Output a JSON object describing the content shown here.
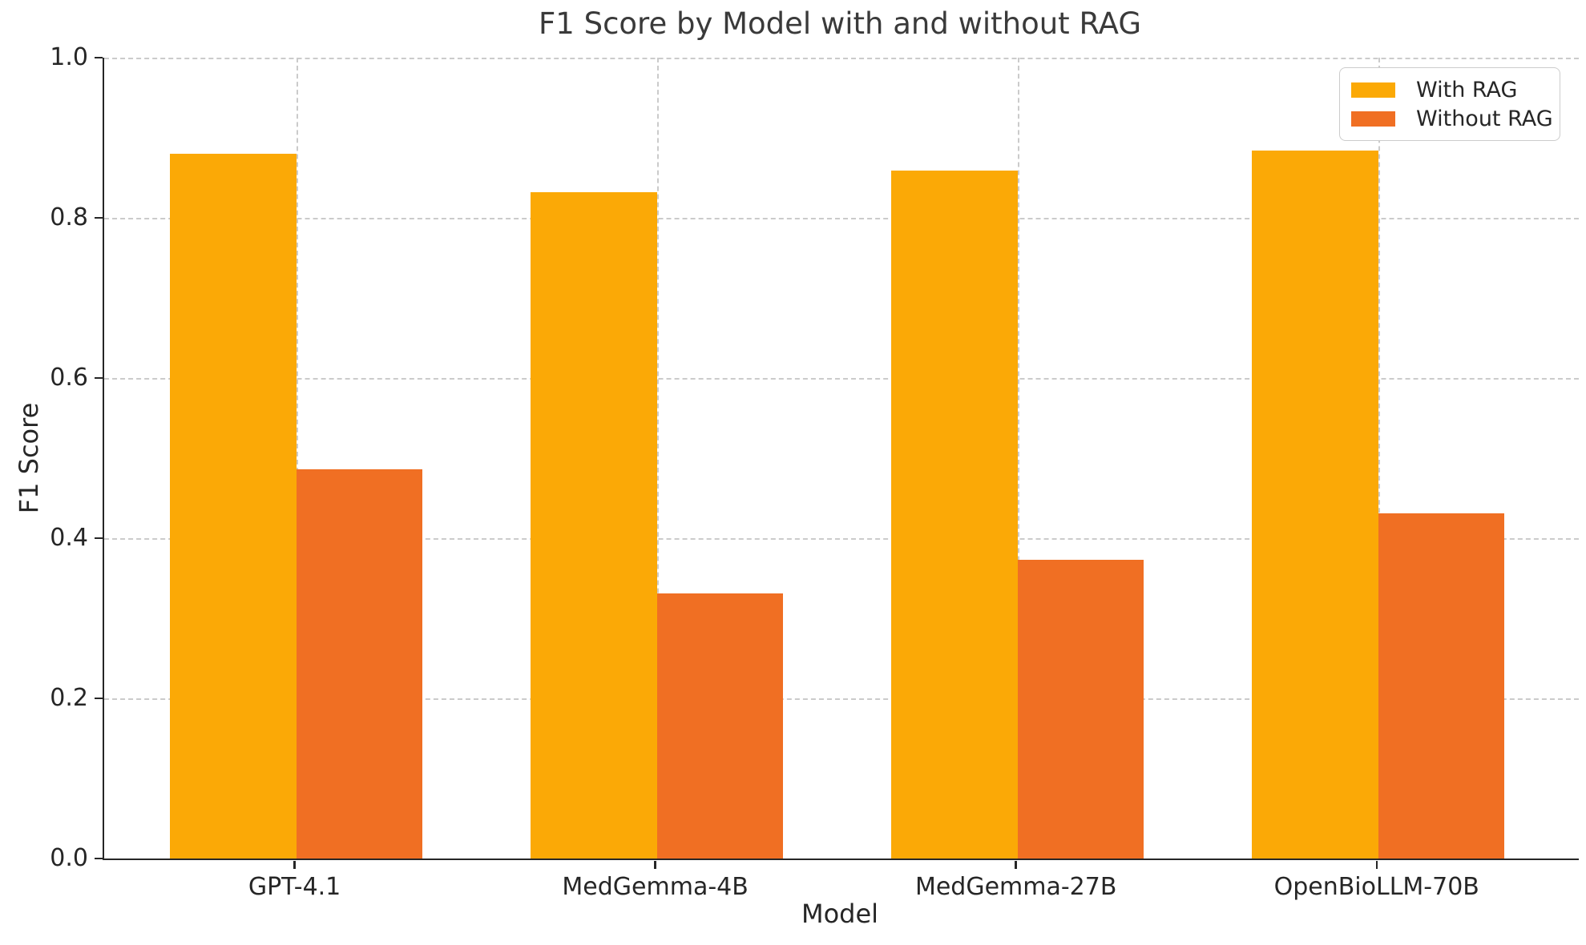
{
  "chart_data": {
    "type": "bar",
    "title": "F1 Score by Model with and without RAG",
    "xlabel": "Model",
    "ylabel": "F1 Score",
    "categories": [
      "GPT-4.1",
      "MedGemma-4B",
      "MedGemma-27B",
      "OpenBioLLM-70B"
    ],
    "series": [
      {
        "name": "With RAG",
        "color": "#FBA906",
        "values": [
          0.88,
          0.832,
          0.859,
          0.884
        ]
      },
      {
        "name": "Without RAG",
        "color": "#F06F23",
        "values": [
          0.486,
          0.331,
          0.373,
          0.431
        ]
      }
    ],
    "ylim": [
      0.0,
      1.0
    ],
    "ytick_labels": [
      "0.0",
      "0.2",
      "0.4",
      "0.6",
      "0.8",
      "1.0"
    ],
    "grid": {
      "style": "dashed",
      "color": "#cbcbcb",
      "horizontal": true,
      "vertical": true
    },
    "legend": {
      "position": "upper right",
      "entries": [
        "With RAG",
        "Without RAG"
      ]
    },
    "bar_width_fraction": 0.35,
    "axis_color": "#262626",
    "text_color": "#262626"
  }
}
